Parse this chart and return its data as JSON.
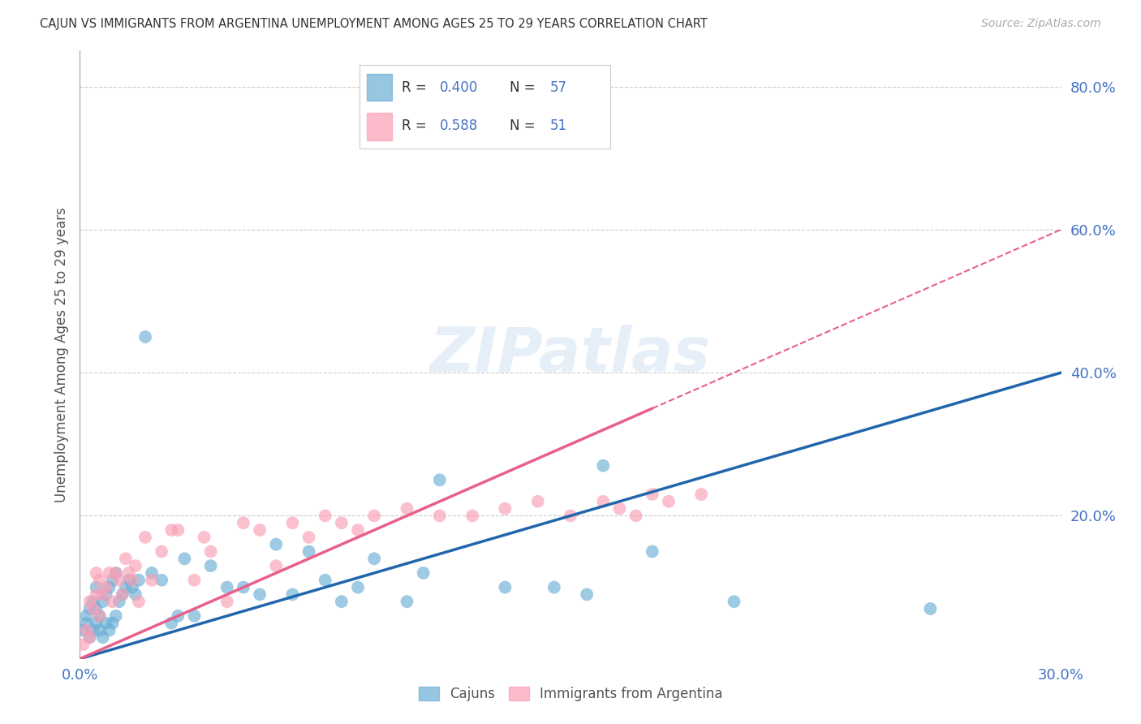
{
  "title": "CAJUN VS IMMIGRANTS FROM ARGENTINA UNEMPLOYMENT AMONG AGES 25 TO 29 YEARS CORRELATION CHART",
  "source": "Source: ZipAtlas.com",
  "ylabel": "Unemployment Among Ages 25 to 29 years",
  "xlim": [
    0.0,
    0.3
  ],
  "ylim": [
    0.0,
    0.85
  ],
  "cajun_color": "#6baed6",
  "argentina_color": "#fa9fb5",
  "cajun_line_color": "#2166ac",
  "argentina_line_color": "#e8608a",
  "cajun_R": 0.4,
  "cajun_N": 57,
  "argentina_R": 0.588,
  "argentina_N": 51,
  "cajun_x": [
    0.001,
    0.002,
    0.002,
    0.003,
    0.003,
    0.004,
    0.004,
    0.005,
    0.005,
    0.005,
    0.006,
    0.006,
    0.007,
    0.007,
    0.008,
    0.008,
    0.009,
    0.009,
    0.01,
    0.01,
    0.011,
    0.011,
    0.012,
    0.013,
    0.014,
    0.015,
    0.016,
    0.017,
    0.018,
    0.02,
    0.022,
    0.025,
    0.028,
    0.03,
    0.032,
    0.035,
    0.04,
    0.045,
    0.05,
    0.055,
    0.06,
    0.065,
    0.07,
    0.075,
    0.08,
    0.085,
    0.09,
    0.1,
    0.105,
    0.11,
    0.13,
    0.145,
    0.155,
    0.16,
    0.175,
    0.2,
    0.26
  ],
  "cajun_y": [
    0.04,
    0.05,
    0.06,
    0.03,
    0.07,
    0.04,
    0.08,
    0.05,
    0.07,
    0.1,
    0.04,
    0.06,
    0.03,
    0.08,
    0.05,
    0.09,
    0.04,
    0.1,
    0.05,
    0.11,
    0.06,
    0.12,
    0.08,
    0.09,
    0.1,
    0.11,
    0.1,
    0.09,
    0.11,
    0.45,
    0.12,
    0.11,
    0.05,
    0.06,
    0.14,
    0.06,
    0.13,
    0.1,
    0.1,
    0.09,
    0.16,
    0.09,
    0.15,
    0.11,
    0.08,
    0.1,
    0.14,
    0.08,
    0.12,
    0.25,
    0.1,
    0.1,
    0.09,
    0.27,
    0.15,
    0.08,
    0.07
  ],
  "argentina_x": [
    0.001,
    0.002,
    0.003,
    0.003,
    0.004,
    0.005,
    0.005,
    0.006,
    0.006,
    0.007,
    0.008,
    0.009,
    0.01,
    0.011,
    0.012,
    0.013,
    0.014,
    0.015,
    0.016,
    0.017,
    0.018,
    0.02,
    0.022,
    0.025,
    0.028,
    0.03,
    0.035,
    0.038,
    0.04,
    0.045,
    0.05,
    0.055,
    0.06,
    0.065,
    0.07,
    0.075,
    0.08,
    0.085,
    0.09,
    0.1,
    0.11,
    0.12,
    0.13,
    0.14,
    0.15,
    0.16,
    0.165,
    0.17,
    0.175,
    0.18,
    0.19
  ],
  "argentina_y": [
    0.02,
    0.04,
    0.03,
    0.08,
    0.07,
    0.09,
    0.12,
    0.06,
    0.11,
    0.09,
    0.1,
    0.12,
    0.08,
    0.12,
    0.11,
    0.09,
    0.14,
    0.12,
    0.11,
    0.13,
    0.08,
    0.17,
    0.11,
    0.15,
    0.18,
    0.18,
    0.11,
    0.17,
    0.15,
    0.08,
    0.19,
    0.18,
    0.13,
    0.19,
    0.17,
    0.2,
    0.19,
    0.18,
    0.2,
    0.21,
    0.2,
    0.2,
    0.21,
    0.22,
    0.2,
    0.22,
    0.21,
    0.2,
    0.23,
    0.22,
    0.23
  ],
  "background_color": "#ffffff",
  "grid_color": "#cccccc",
  "title_color": "#333333",
  "axis_label_color": "#555555",
  "tick_color_blue": "#4472c4"
}
